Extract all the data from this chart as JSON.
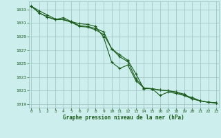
{
  "title": "Graphe pression niveau de la mer (hPa)",
  "bg_color": "#cceeed",
  "line_color": "#1a5c1a",
  "grid_color": "#9bbfbf",
  "axis_label_color": "#1a5c1a",
  "ylim": [
    1018.5,
    1034.2
  ],
  "xlim": [
    -0.3,
    23.3
  ],
  "yticks": [
    1019,
    1021,
    1023,
    1025,
    1027,
    1029,
    1031,
    1033
  ],
  "xticks": [
    0,
    1,
    2,
    3,
    4,
    5,
    6,
    7,
    8,
    9,
    10,
    11,
    12,
    13,
    14,
    15,
    16,
    17,
    18,
    19,
    20,
    21,
    22,
    23
  ],
  "series1": [
    1033.5,
    1032.8,
    1032.2,
    1031.6,
    1031.5,
    1031.2,
    1030.6,
    1030.5,
    1030.2,
    1029.7,
    1027.2,
    1026.3,
    1025.5,
    1023.5,
    1021.3,
    1021.3,
    1021.1,
    1021.0,
    1020.8,
    1020.5,
    1019.8,
    1019.5,
    1019.3,
    1019.2
  ],
  "series2": [
    1033.5,
    1032.5,
    1031.9,
    1031.5,
    1031.5,
    1031.1,
    1030.5,
    1030.4,
    1030.0,
    1029.3,
    1027.2,
    1026.0,
    1025.3,
    1022.8,
    1021.4,
    1021.3,
    1021.1,
    1021.0,
    1020.8,
    1020.3,
    1020.0,
    1019.5,
    1019.3,
    1019.2
  ],
  "series3": [
    1033.5,
    1032.5,
    1031.9,
    1031.5,
    1031.8,
    1031.2,
    1030.9,
    1030.8,
    1030.5,
    1028.9,
    1025.2,
    1024.3,
    1024.8,
    1022.5,
    1021.4,
    1021.3,
    1020.3,
    1020.8,
    1020.6,
    1020.3,
    1019.8,
    1019.5,
    1019.3,
    1019.2
  ]
}
